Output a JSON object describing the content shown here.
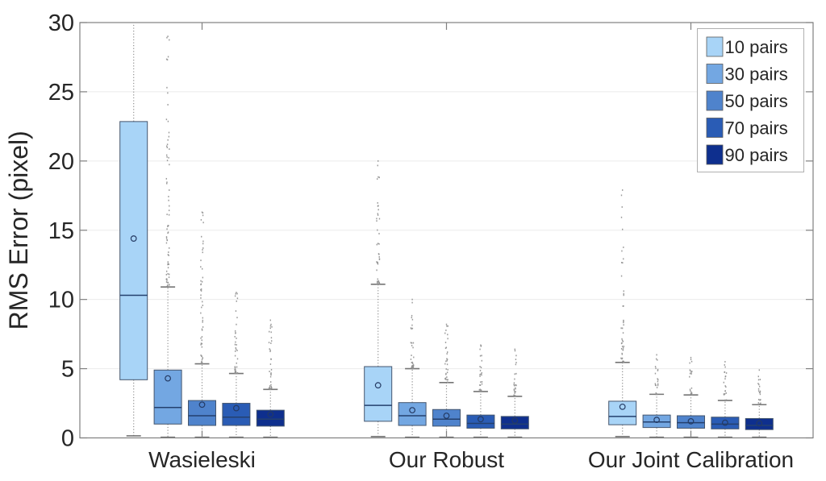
{
  "chart_data": {
    "type": "boxplot",
    "title": "",
    "xlabel": "",
    "ylabel": "RMS Error (pixel)",
    "ylim": [
      0,
      30
    ],
    "yticks": [
      "0",
      "5",
      "10",
      "15",
      "20",
      "25",
      "30"
    ],
    "grid": "horizontal-light",
    "legend": {
      "position": "top-right",
      "entries": [
        {
          "label": "10 pairs",
          "color": "#A8D4F7"
        },
        {
          "label": "30 pairs",
          "color": "#73A7E2"
        },
        {
          "label": "50 pairs",
          "color": "#4F83CC"
        },
        {
          "label": "70 pairs",
          "color": "#2A5CB5"
        },
        {
          "label": "90 pairs",
          "color": "#0E2F8E"
        }
      ]
    },
    "groups": [
      {
        "label": "Wasieleski",
        "boxes": [
          {
            "series": "10 pairs",
            "whisker_low": 0.15,
            "q1": 4.2,
            "median": 10.3,
            "q3": 22.85,
            "mean": 14.4,
            "whisker_high": 30.5,
            "outlier_max": null,
            "outlier_count": 0
          },
          {
            "series": "30 pairs",
            "whisker_low": 0.05,
            "q1": 1.0,
            "median": 2.2,
            "q3": 4.9,
            "mean": 4.3,
            "whisker_high": 10.9,
            "outlier_max": 29.0,
            "outlier_count": 70
          },
          {
            "series": "50 pairs",
            "whisker_low": 0.05,
            "q1": 0.9,
            "median": 1.6,
            "q3": 2.7,
            "mean": 2.4,
            "whisker_high": 5.35,
            "outlier_max": 16.3,
            "outlier_count": 55
          },
          {
            "series": "70 pairs",
            "whisker_low": 0.05,
            "q1": 0.9,
            "median": 1.5,
            "q3": 2.5,
            "mean": 2.15,
            "whisker_high": 4.65,
            "outlier_max": 10.5,
            "outlier_count": 45
          },
          {
            "series": "90 pairs",
            "whisker_low": 0.05,
            "q1": 0.85,
            "median": 1.35,
            "q3": 2.0,
            "mean": 1.7,
            "whisker_high": 3.5,
            "outlier_max": 8.5,
            "outlier_count": 35
          }
        ]
      },
      {
        "label": "Our Robust",
        "boxes": [
          {
            "series": "10 pairs",
            "whisker_low": 0.1,
            "q1": 1.2,
            "median": 2.35,
            "q3": 5.15,
            "mean": 3.8,
            "whisker_high": 11.1,
            "outlier_max": 20.0,
            "outlier_count": 40
          },
          {
            "series": "30 pairs",
            "whisker_low": 0.05,
            "q1": 0.9,
            "median": 1.6,
            "q3": 2.55,
            "mean": 2.0,
            "whisker_high": 5.0,
            "outlier_max": 10.0,
            "outlier_count": 32
          },
          {
            "series": "50 pairs",
            "whisker_low": 0.05,
            "q1": 0.85,
            "median": 1.35,
            "q3": 2.05,
            "mean": 1.6,
            "whisker_high": 4.0,
            "outlier_max": 8.2,
            "outlier_count": 30
          },
          {
            "series": "70 pairs",
            "whisker_low": 0.05,
            "q1": 0.7,
            "median": 1.05,
            "q3": 1.65,
            "mean": 1.35,
            "whisker_high": 3.35,
            "outlier_max": 6.7,
            "outlier_count": 26
          },
          {
            "series": "90 pairs",
            "whisker_low": 0.05,
            "q1": 0.65,
            "median": 1.0,
            "q3": 1.55,
            "mean": 1.25,
            "whisker_high": 3.0,
            "outlier_max": 6.4,
            "outlier_count": 24
          }
        ]
      },
      {
        "label": "Our Joint Calibration",
        "boxes": [
          {
            "series": "10 pairs",
            "whisker_low": 0.1,
            "q1": 0.95,
            "median": 1.55,
            "q3": 2.65,
            "mean": 2.25,
            "whisker_high": 5.45,
            "outlier_max": 17.9,
            "outlier_count": 45
          },
          {
            "series": "30 pairs",
            "whisker_low": 0.05,
            "q1": 0.75,
            "median": 1.15,
            "q3": 1.65,
            "mean": 1.3,
            "whisker_high": 3.15,
            "outlier_max": 6.0,
            "outlier_count": 20
          },
          {
            "series": "50 pairs",
            "whisker_low": 0.05,
            "q1": 0.7,
            "median": 1.1,
            "q3": 1.6,
            "mean": 1.2,
            "whisker_high": 3.1,
            "outlier_max": 5.8,
            "outlier_count": 20
          },
          {
            "series": "70 pairs",
            "whisker_low": 0.05,
            "q1": 0.65,
            "median": 1.0,
            "q3": 1.5,
            "mean": 1.1,
            "whisker_high": 2.7,
            "outlier_max": 5.5,
            "outlier_count": 20
          },
          {
            "series": "90 pairs",
            "whisker_low": 0.05,
            "q1": 0.6,
            "median": 0.9,
            "q3": 1.4,
            "mean": 1.05,
            "whisker_high": 2.4,
            "outlier_max": 4.9,
            "outlier_count": 18
          }
        ]
      }
    ],
    "style": {
      "background": "#ffffff",
      "axis_color": "#808080",
      "grid_color": "#ebebeb",
      "text_color": "#262626",
      "box_edge_color": "#45566e",
      "median_color": "#24406e",
      "mean_marker_color": "#243a63",
      "whisker_color": "#8f8f8f",
      "cap_color": "#757575",
      "outlier_color": "#8f8f8f",
      "legend_border_color": "#b0b0b0",
      "legend_swatch_edge_color": "#5a5a5a"
    }
  }
}
